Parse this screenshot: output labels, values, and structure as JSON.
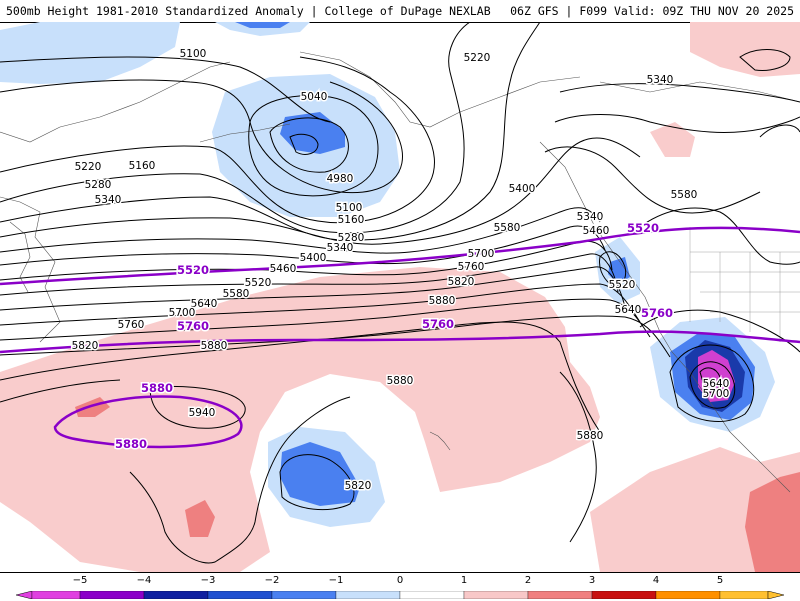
{
  "header": {
    "left": "500mb Height 1981-2010 Standardized Anomaly | College of DuPage NEXLAB",
    "right": "06Z GFS | F099 Valid: 09Z THU NOV 20 2025"
  },
  "contour_labels": [
    "5100",
    "5040",
    "4980",
    "5160",
    "5220",
    "5280",
    "5340",
    "5100",
    "5160",
    "5280",
    "5340",
    "5400",
    "5460",
    "5520",
    "5580",
    "5640",
    "5700",
    "5760",
    "5820",
    "5880",
    "5880",
    "5940",
    "5820",
    "5880",
    "5220",
    "5340",
    "5400",
    "5580",
    "5700",
    "5760",
    "5820",
    "5880",
    "5340",
    "5460",
    "5520",
    "5640",
    "5580",
    "5640",
    "5700",
    "5880"
  ],
  "bold_labels": [
    "5520",
    "5520",
    "5760",
    "5760",
    "5760",
    "5880",
    "5880"
  ],
  "legend": {
    "ticks": [
      "−5",
      "−4",
      "−3",
      "−2",
      "−1",
      "0",
      "1",
      "2",
      "3",
      "4",
      "5"
    ],
    "colors": [
      "#e040e0",
      "#8b00c8",
      "#1020a0",
      "#2050d0",
      "#4a80f0",
      "#c8e0fb",
      "#ffffff",
      "#f8c8c8",
      "#f08080",
      "#c81010",
      "#ff9000"
    ]
  },
  "colors": {
    "neg_light": "#c8e0fb",
    "neg_mid": "#4a80f0",
    "neg_dark": "#1a3aaa",
    "neg_extreme": "#d040d0",
    "pos_light": "#f9cccc",
    "pos_mid": "#ee8080",
    "purple_contour": "#8a00c8"
  }
}
